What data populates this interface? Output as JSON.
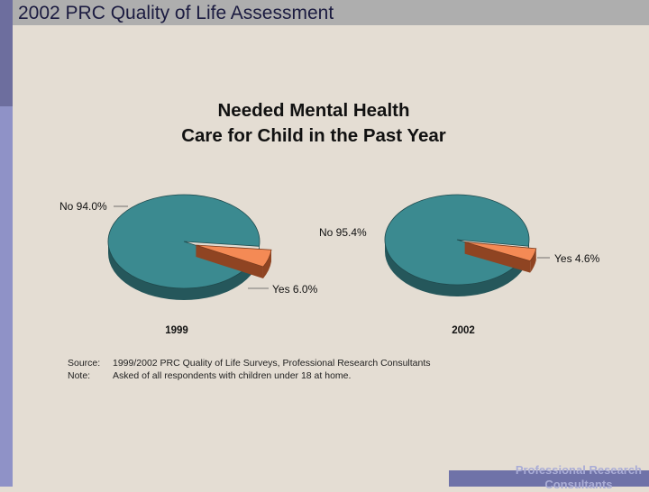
{
  "slide": {
    "title": "2002 PRC Quality of Life Assessment",
    "footer_line1": "Professional Research",
    "footer_line2": "Consultants"
  },
  "colors": {
    "no_slice_top": "#3b8a90",
    "no_slice_side": "#25575b",
    "yes_slice_top": "#f48a55",
    "yes_slice_side": "#8f4422",
    "background": "#e4ddd3",
    "title_bar": "#aeaeae",
    "sidebar": "#8f92c7"
  },
  "chart_data": {
    "type": "pie",
    "title_line1": "Needed Mental Health",
    "title_line2": "Care for Child in the Past Year",
    "pies": [
      {
        "year": "1999",
        "slices": [
          {
            "label": "No",
            "value": 94.0,
            "display": "No  94.0%"
          },
          {
            "label": "Yes",
            "value": 6.0,
            "display": "Yes  6.0%"
          }
        ]
      },
      {
        "year": "2002",
        "slices": [
          {
            "label": "No",
            "value": 95.4,
            "display": "No  95.4%"
          },
          {
            "label": "Yes",
            "value": 4.6,
            "display": "Yes  4.6%"
          }
        ]
      }
    ],
    "source_label": "Source:",
    "source_text": "1999/2002 PRC Quality of Life Surveys, Professional Research Consultants",
    "note_label": "Note:",
    "note_text": "Asked of all respondents with children under 18 at home."
  }
}
